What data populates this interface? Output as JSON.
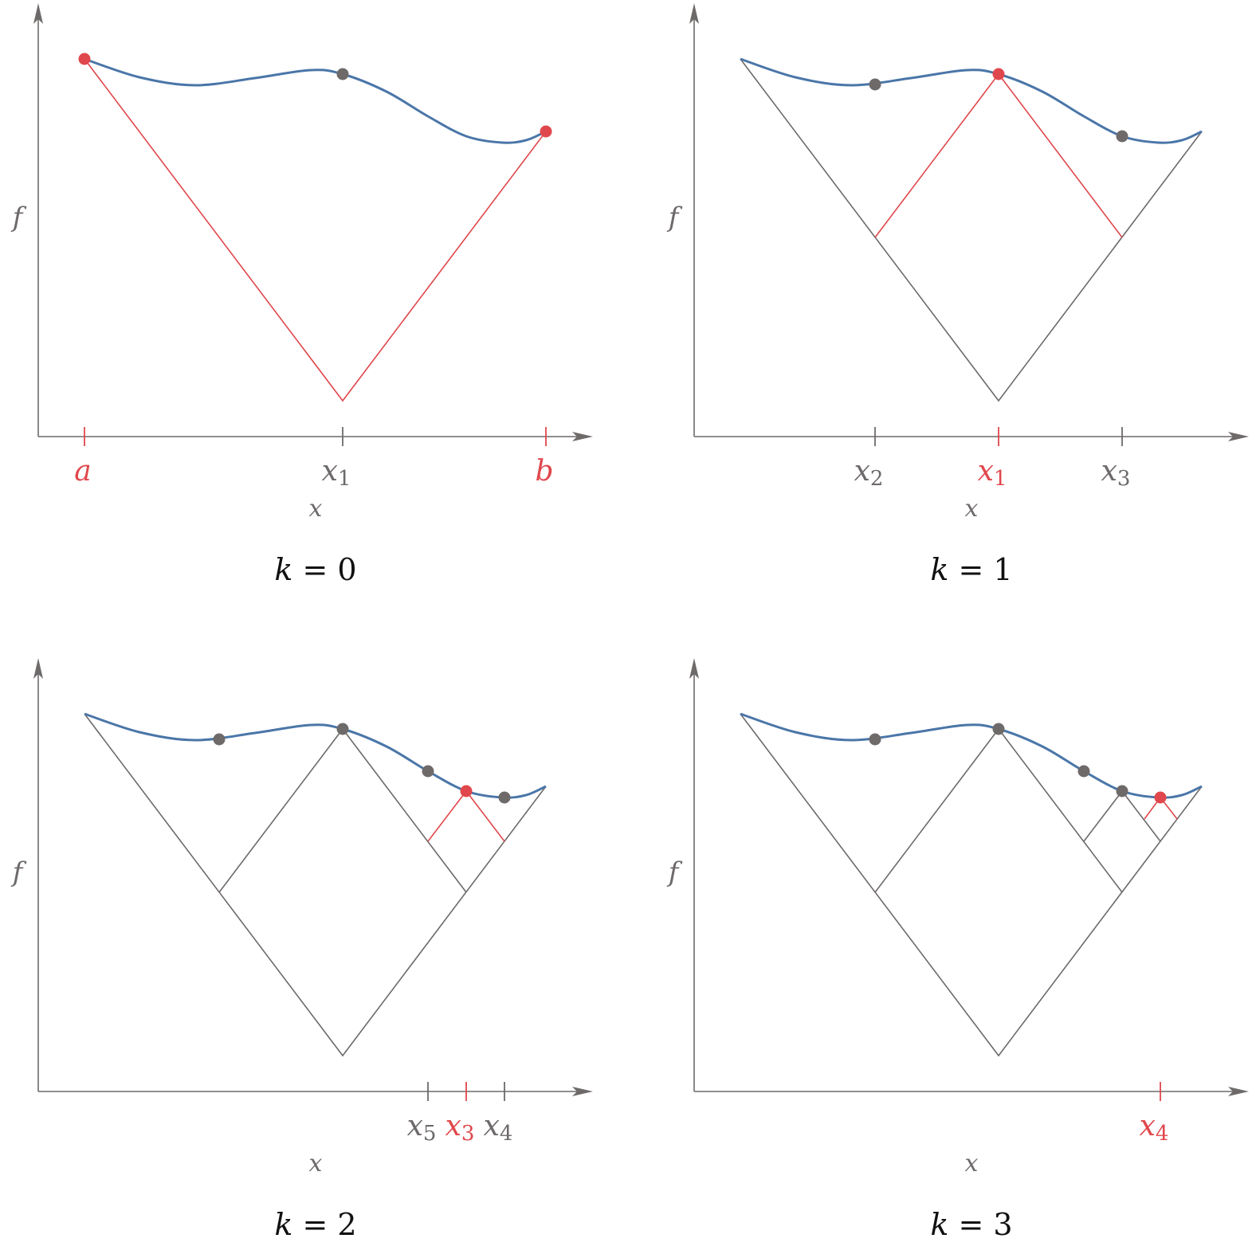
{
  "colors": {
    "axis": "#6e6a6a",
    "curve": "#4a76a8",
    "highlight": "#e0474c",
    "lines": "#6e6a6a"
  },
  "axis_labels": {
    "x": "x",
    "y": "f"
  },
  "panels": [
    {
      "caption_var": "k",
      "caption_eq": "=",
      "caption_val": "0",
      "ticks": [
        {
          "name": "a",
          "label": "a",
          "sub": "",
          "red": true
        },
        {
          "name": "x1",
          "label": "x",
          "sub": "1",
          "red": false
        },
        {
          "name": "b",
          "label": "b",
          "sub": "",
          "red": true
        }
      ],
      "points": [
        {
          "name": "a",
          "red": true
        },
        {
          "name": "x1",
          "red": false
        },
        {
          "name": "b",
          "red": true
        }
      ]
    },
    {
      "caption_var": "k",
      "caption_eq": "=",
      "caption_val": "1",
      "ticks": [
        {
          "name": "x2",
          "label": "x",
          "sub": "2",
          "red": false
        },
        {
          "name": "x1",
          "label": "x",
          "sub": "1",
          "red": true
        },
        {
          "name": "x3",
          "label": "x",
          "sub": "3",
          "red": false
        }
      ],
      "points": [
        {
          "name": "x2",
          "red": false
        },
        {
          "name": "x1",
          "red": true
        },
        {
          "name": "x3",
          "red": false
        }
      ]
    },
    {
      "caption_var": "k",
      "caption_eq": "=",
      "caption_val": "2",
      "ticks": [
        {
          "name": "x5",
          "label": "x",
          "sub": "5",
          "red": false
        },
        {
          "name": "x3",
          "label": "x",
          "sub": "3",
          "red": true
        },
        {
          "name": "x4",
          "label": "x",
          "sub": "4",
          "red": false
        }
      ],
      "points": [
        {
          "name": "x2",
          "red": false
        },
        {
          "name": "x1",
          "red": false
        },
        {
          "name": "x5",
          "red": false
        },
        {
          "name": "x4",
          "red": false
        },
        {
          "name": "x3",
          "red": true
        }
      ]
    },
    {
      "caption_var": "k",
      "caption_eq": "=",
      "caption_val": "3",
      "ticks": [
        {
          "name": "x4",
          "label": "x",
          "sub": "4",
          "red": true
        }
      ],
      "points": [
        {
          "name": "x2",
          "red": false
        },
        {
          "name": "x1",
          "red": false
        },
        {
          "name": "x5",
          "red": false
        },
        {
          "name": "x3",
          "red": false
        },
        {
          "name": "x4",
          "red": true
        }
      ]
    }
  ]
}
